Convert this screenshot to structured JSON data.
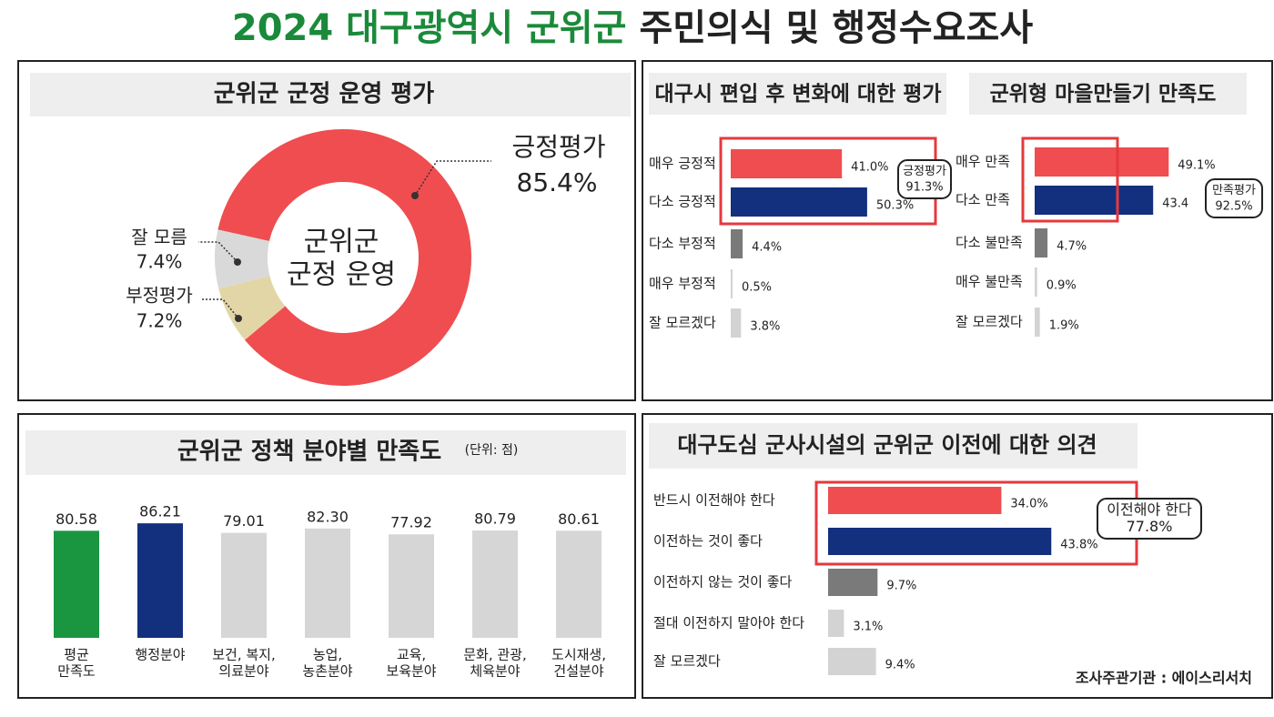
{
  "header": {
    "title_highlight": "2024 대구광역시 군위군",
    "title": "주민의식 및 행정수요조사"
  },
  "chart_data": [
    {
      "type": "pie",
      "title": "군위군 군정 운영 평가",
      "center_label": [
        "군위군",
        "군정 운영"
      ],
      "categories": [
        "긍정평가",
        "잘 모름",
        "부정평가"
      ],
      "values": [
        85.4,
        7.4,
        7.2
      ],
      "value_labels": [
        "85.4%",
        "7.4%",
        "7.2%"
      ],
      "colors": [
        "#ef4d50",
        "#d9d9d9",
        "#e3d6a6"
      ]
    },
    {
      "type": "bar",
      "orientation": "horizontal",
      "title": "대구시 편입 후 변화에 대한 평가",
      "categories": [
        "매우 긍정적",
        "다소 긍정적",
        "다소 부정적",
        "매우 부정적",
        "잘 모르겠다"
      ],
      "values": [
        41.0,
        50.3,
        4.4,
        0.5,
        3.8
      ],
      "value_labels": [
        "41.0%",
        "50.3%",
        "4.4%",
        "0.5%",
        "3.8%"
      ],
      "colors": [
        "#ef4d50",
        "#13307f",
        "#7a7a7a",
        "#d3d3d3",
        "#d3d3d3"
      ],
      "annotation": {
        "label": "긍정평가",
        "value": "91.3%"
      }
    },
    {
      "type": "bar",
      "orientation": "horizontal",
      "title": "군위형 마을만들기 만족도",
      "categories": [
        "매우 만족",
        "다소 만족",
        "다소 불만족",
        "매우 불만족",
        "잘 모르겠다"
      ],
      "values": [
        49.1,
        43.4,
        4.7,
        0.9,
        1.9
      ],
      "value_labels": [
        "49.1%",
        "43.4",
        "4.7%",
        "0.9%",
        "1.9%"
      ],
      "colors": [
        "#ef4d50",
        "#13307f",
        "#7a7a7a",
        "#d3d3d3",
        "#d3d3d3"
      ],
      "annotation": {
        "label": "만족평가",
        "value": "92.5%"
      }
    },
    {
      "type": "bar",
      "orientation": "vertical",
      "title": "군위군 정책 분야별 만족도",
      "subtitle": "(단위: 점)",
      "categories": [
        [
          "평균",
          "만족도"
        ],
        [
          "행정분야"
        ],
        [
          "보건, 복지,",
          "의료분야"
        ],
        [
          "농업,",
          "농촌분야"
        ],
        [
          "교육,",
          "보육분야"
        ],
        [
          "문화, 관광,",
          "체육분야"
        ],
        [
          "도시재생,",
          "건설분야"
        ]
      ],
      "values": [
        80.58,
        86.21,
        79.01,
        82.3,
        77.92,
        80.79,
        80.61
      ],
      "value_labels": [
        "80.58",
        "86.21",
        "79.01",
        "82.30",
        "77.92",
        "80.79",
        "80.61"
      ],
      "colors": [
        "#1a9641",
        "#13307f",
        "#d6d6d6",
        "#d6d6d6",
        "#d6d6d6",
        "#d6d6d6",
        "#d6d6d6"
      ]
    },
    {
      "type": "bar",
      "orientation": "horizontal",
      "title": "대구도심 군사시설의 군위군 이전에 대한  의견",
      "categories": [
        "반드시 이전해야 한다",
        "이전하는 것이 좋다",
        "이전하지 않는 것이 좋다",
        "절대 이전하지 말아야 한다",
        "잘 모르겠다"
      ],
      "values": [
        34.0,
        43.8,
        9.7,
        3.1,
        9.4
      ],
      "value_labels": [
        "34.0%",
        "43.8%",
        "9.7%",
        "3.1%",
        "9.4%"
      ],
      "colors": [
        "#ef4d50",
        "#13307f",
        "#7a7a7a",
        "#d3d3d3",
        "#d3d3d3"
      ],
      "annotation": {
        "label": "이전해야 한다",
        "value": "77.8%"
      }
    }
  ],
  "footer": "조사주관기관 : 에이스리서치"
}
